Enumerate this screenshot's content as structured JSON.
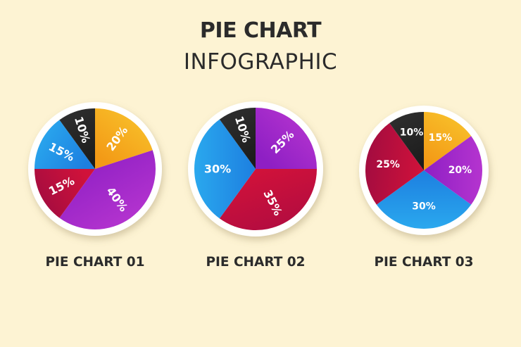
{
  "title": "PIE CHART",
  "subtitle": "INFOGRAPHIC",
  "chart_data": [
    {
      "type": "pie",
      "title": "PIE CHART 01",
      "slices": [
        {
          "label": "20%",
          "value": 20,
          "color": "#f39a16",
          "color2": "#f8c02a"
        },
        {
          "label": "40%",
          "value": 40,
          "color": "#8e1fc4",
          "color2": "#b534cf"
        },
        {
          "label": "15%",
          "value": 15,
          "color": "#d1123a",
          "color2": "#a30c40"
        },
        {
          "label": "15%",
          "value": 15,
          "color": "#1d7fe0",
          "color2": "#2aa8ee"
        },
        {
          "label": "10%",
          "value": 10,
          "color": "#1c1c1c",
          "color2": "#2e2e2e"
        }
      ]
    },
    {
      "type": "pie",
      "title": "PIE CHART 02",
      "slices": [
        {
          "label": "25%",
          "value": 25,
          "color": "#8e1fc4",
          "color2": "#b534cf"
        },
        {
          "label": "35%",
          "value": 35,
          "color": "#d1123a",
          "color2": "#b20c40"
        },
        {
          "label": "30%",
          "value": 30,
          "color": "#1d7fe0",
          "color2": "#2aa8ee"
        },
        {
          "label": "10%",
          "value": 10,
          "color": "#1c1c1c",
          "color2": "#2e2e2e"
        }
      ]
    },
    {
      "type": "pie",
      "title": "PIE CHART 03",
      "slices": [
        {
          "label": "15%",
          "value": 15,
          "color": "#f39a16",
          "color2": "#f8c02a"
        },
        {
          "label": "20%",
          "value": 20,
          "color": "#8e1fc4",
          "color2": "#b534cf"
        },
        {
          "label": "30%",
          "value": 30,
          "color": "#1d7fe0",
          "color2": "#2aa8ee"
        },
        {
          "label": "25%",
          "value": 25,
          "color": "#d1123a",
          "color2": "#a30c40"
        },
        {
          "label": "10%",
          "value": 10,
          "color": "#1c1c1c",
          "color2": "#2e2e2e"
        }
      ]
    }
  ]
}
